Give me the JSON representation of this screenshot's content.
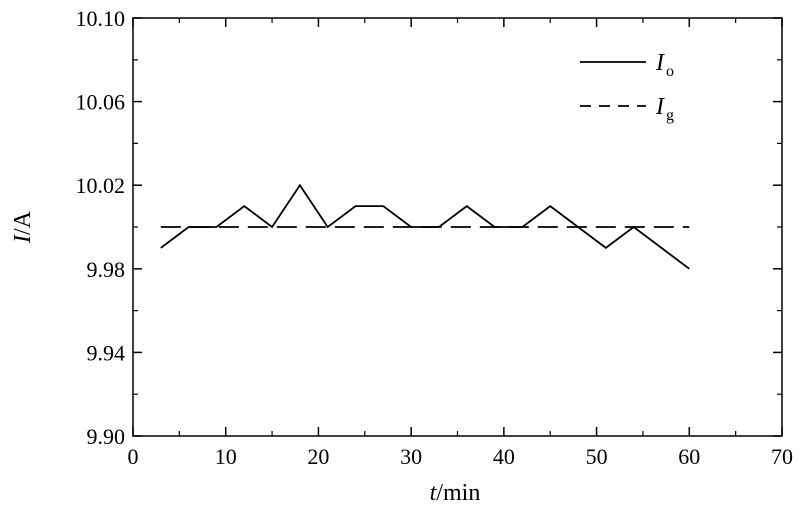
{
  "chart_data": {
    "type": "line",
    "xlabel_italic": "t",
    "xlabel_rest": "/min",
    "ylabel_italic": "I",
    "ylabel_rest": "/A",
    "xlim": [
      0,
      70
    ],
    "ylim": [
      9.9,
      10.1
    ],
    "x_ticks": [
      0,
      10,
      20,
      30,
      40,
      50,
      60,
      70
    ],
    "x_tick_labels": [
      "0",
      "10",
      "20",
      "30",
      "40",
      "50",
      "60",
      "70"
    ],
    "y_ticks": [
      9.9,
      9.94,
      9.98,
      10.02,
      10.06,
      10.1
    ],
    "y_tick_labels": [
      "9.90",
      "9.94",
      "9.98",
      "10.02",
      "10.06",
      "10.10"
    ],
    "grid": false,
    "legend_position": "top-right",
    "series": [
      {
        "name_main": "I",
        "name_sub": "o",
        "line_style": "solid",
        "x": [
          3,
          6,
          9,
          12,
          15,
          18,
          21,
          24,
          27,
          30,
          33,
          36,
          39,
          42,
          45,
          48,
          51,
          54,
          57,
          60
        ],
        "y": [
          9.99,
          10.0,
          10.0,
          10.01,
          10.0,
          10.02,
          10.0,
          10.01,
          10.01,
          10.0,
          10.0,
          10.01,
          10.0,
          10.0,
          10.01,
          10.0,
          9.99,
          10.0,
          9.99,
          9.98
        ]
      },
      {
        "name_main": "I",
        "name_sub": "g",
        "line_style": "dashed",
        "x": [
          3,
          60
        ],
        "y": [
          10.0,
          10.0
        ]
      }
    ]
  }
}
